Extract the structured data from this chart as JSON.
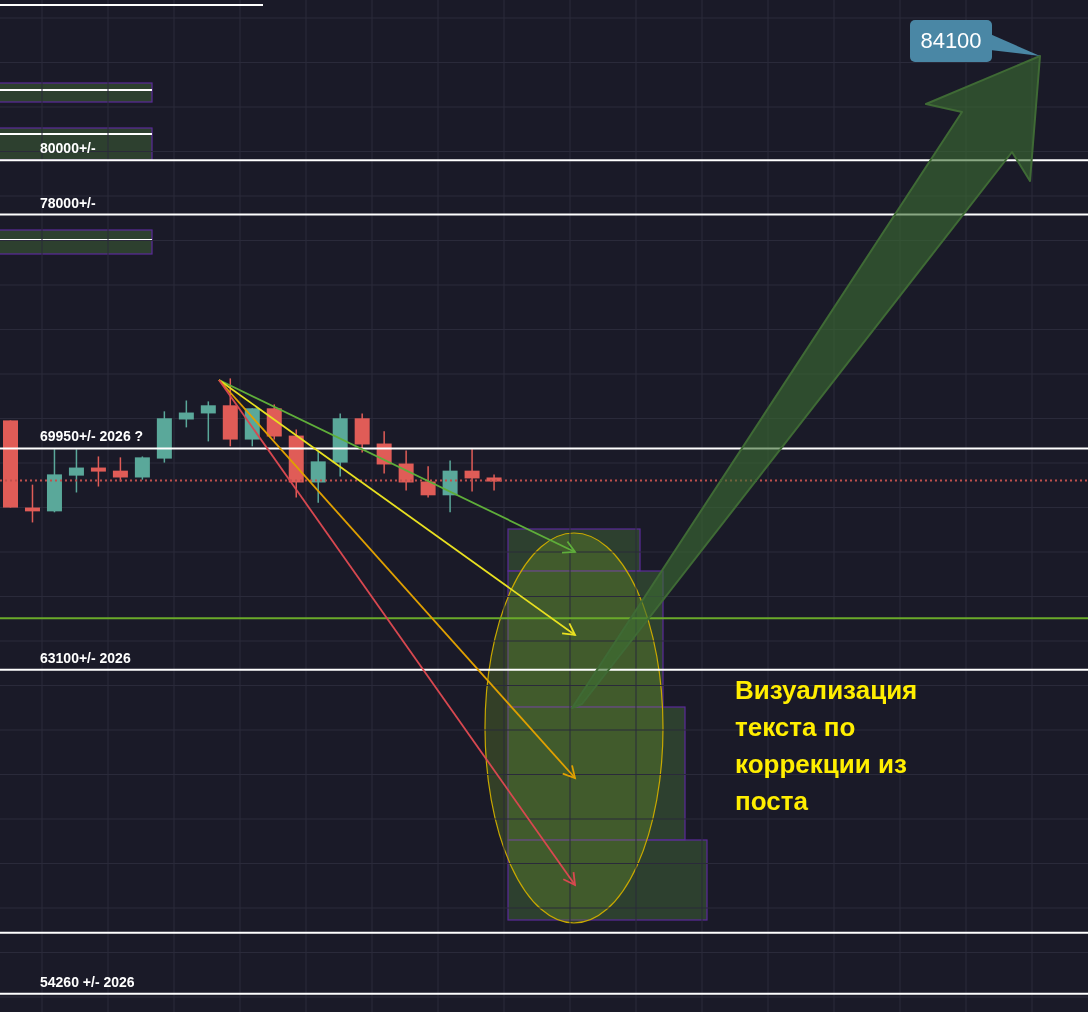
{
  "chart_data": {
    "type": "candlestick",
    "log": true,
    "grid": true,
    "tick_labels": false,
    "ylim": [
      53800,
      86200
    ],
    "categories": [
      null,
      null,
      null,
      null,
      null,
      null,
      null,
      null,
      null,
      null,
      null,
      null,
      null,
      null,
      null,
      null,
      null,
      null,
      null,
      null,
      null,
      null,
      null,
      null,
      null,
      null,
      null,
      null,
      null,
      null,
      null,
      null,
      null,
      null,
      null,
      null,
      null,
      null,
      null,
      null,
      null,
      null,
      null,
      null,
      null,
      null,
      null,
      null,
      null,
      null
    ],
    "ohlc": [
      [
        70870,
        70870,
        68050,
        68050
      ],
      [
        68050,
        68780,
        67580,
        67930
      ],
      [
        67930,
        69920,
        67900,
        69110
      ],
      [
        69070,
        69920,
        68530,
        69330
      ],
      [
        69330,
        69690,
        68720,
        69200
      ],
      [
        69230,
        69660,
        68880,
        69010
      ],
      [
        69010,
        69690,
        68940,
        69660
      ],
      [
        69620,
        71170,
        69490,
        70940
      ],
      [
        70900,
        71530,
        70640,
        71130
      ],
      [
        71100,
        71500,
        70180,
        71370
      ],
      [
        71370,
        72270,
        70020,
        70240
      ],
      [
        70240,
        71270,
        70020,
        71270
      ],
      [
        71270,
        71400,
        70240,
        70340
      ],
      [
        70370,
        70570,
        68370,
        68850
      ],
      [
        68850,
        69850,
        68200,
        69530
      ],
      [
        69490,
        71100,
        69040,
        70940
      ],
      [
        70940,
        71100,
        69820,
        70080
      ],
      [
        70110,
        70510,
        69140,
        69430
      ],
      [
        69460,
        69880,
        68590,
        68850
      ],
      [
        68880,
        69370,
        68370,
        68440
      ],
      [
        68440,
        69560,
        67900,
        69230
      ],
      [
        69230,
        69920,
        68560,
        68980
      ],
      [
        69010,
        69110,
        68590,
        68880
      ],
      null,
      null,
      null,
      null,
      null,
      null,
      null,
      null,
      null,
      null,
      null,
      null,
      null,
      null,
      null,
      null,
      null,
      null,
      null,
      null,
      null,
      null,
      null,
      null,
      null,
      null,
      null
    ],
    "colors": [
      "#e05c57",
      "#e05c57",
      "#5aa89a",
      "#5aa89a",
      "#e05c57",
      "#e05c57",
      "#5aa89a",
      "#5aa89a",
      "#5aa89a",
      "#5aa89a",
      "#e05c57",
      "#5aa89a",
      "#e05c57",
      "#e05c57",
      "#5aa89a",
      "#5aa89a",
      "#e05c57",
      "#e05c57",
      "#e05c57",
      "#e05c57",
      "#5aa89a",
      "#e05c57",
      "#e05c57",
      null,
      null,
      null,
      null,
      null,
      null,
      null,
      null,
      null,
      null,
      null,
      null,
      null,
      null,
      null,
      null,
      null,
      null,
      null,
      null,
      null,
      null,
      null,
      null,
      null,
      null,
      null
    ],
    "ref_lines": [
      {
        "axis": "y",
        "value": 80000,
        "label": "80000+/-",
        "color": "#ffffff"
      },
      {
        "axis": "y",
        "value": 78000,
        "label": "78000+/-",
        "color": "#ffffff"
      },
      {
        "axis": "y",
        "value": 69950,
        "label": "69950+/- 2026 ?",
        "color": "#ffffff"
      },
      {
        "axis": "y",
        "value": 63100,
        "label": "63100+/- 2026",
        "color": "#ffffff"
      },
      {
        "axis": "y",
        "value": 54260,
        "label": "54260 +/- 2026",
        "color": "#ffffff"
      },
      {
        "axis": "y",
        "value": 64630,
        "label": null,
        "color": "#6aaa2a"
      },
      {
        "axis": "y",
        "value": 55820,
        "label": null,
        "color": "#ffffff"
      },
      {
        "axis": "y",
        "value": 68910,
        "label": null,
        "color": "#c0504d",
        "line_style": "dotted"
      }
    ],
    "annotations": [
      "84100",
      "Визуализация текста по коррекции из поста"
    ]
  }
}
